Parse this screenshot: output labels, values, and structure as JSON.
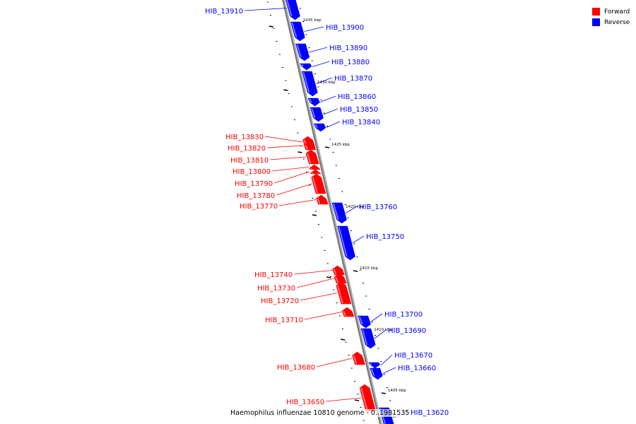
{
  "legend": {
    "forward": {
      "label": "Forward",
      "color": "#ff0000"
    },
    "reverse": {
      "label": "Reverse",
      "color": "#0000ff"
    }
  },
  "caption": "Haemophilus influenzae 10810 genome - 0..1981535",
  "scale_unit": "kbp",
  "scale_ticks": [
    "1435 kbp",
    "1430 kbp",
    "1425 kbp",
    "1420 kbp",
    "1415 kbp",
    "1410 kbp",
    "1405 kbp"
  ],
  "genes": [
    {
      "id": "HIB_13910",
      "strand": "reverse"
    },
    {
      "id": "HIB_13900",
      "strand": "reverse"
    },
    {
      "id": "HIB_13890",
      "strand": "reverse"
    },
    {
      "id": "HIB_13880",
      "strand": "reverse"
    },
    {
      "id": "HIB_13870",
      "strand": "reverse"
    },
    {
      "id": "HIB_13860",
      "strand": "reverse"
    },
    {
      "id": "HIB_13850",
      "strand": "reverse"
    },
    {
      "id": "HIB_13840",
      "strand": "reverse"
    },
    {
      "id": "HIB_13830",
      "strand": "forward"
    },
    {
      "id": "HIB_13820",
      "strand": "forward"
    },
    {
      "id": "HIB_13810",
      "strand": "forward"
    },
    {
      "id": "HIB_13800",
      "strand": "forward"
    },
    {
      "id": "HIB_13790",
      "strand": "forward"
    },
    {
      "id": "HIB_13780",
      "strand": "forward"
    },
    {
      "id": "HIB_13770",
      "strand": "forward"
    },
    {
      "id": "HIB_13760",
      "strand": "reverse"
    },
    {
      "id": "HIB_13750",
      "strand": "reverse"
    },
    {
      "id": "HIB_13740",
      "strand": "forward"
    },
    {
      "id": "HIB_13730",
      "strand": "forward"
    },
    {
      "id": "HIB_13720",
      "strand": "forward"
    },
    {
      "id": "HIB_13710",
      "strand": "forward"
    },
    {
      "id": "HIB_13700",
      "strand": "reverse"
    },
    {
      "id": "HIB_13690",
      "strand": "reverse"
    },
    {
      "id": "HIB_13680",
      "strand": "forward"
    },
    {
      "id": "HIB_13670",
      "strand": "reverse"
    },
    {
      "id": "HIB_13660",
      "strand": "reverse"
    },
    {
      "id": "HIB_13650",
      "strand": "forward"
    },
    {
      "id": "HIB_13620",
      "strand": "reverse"
    }
  ]
}
